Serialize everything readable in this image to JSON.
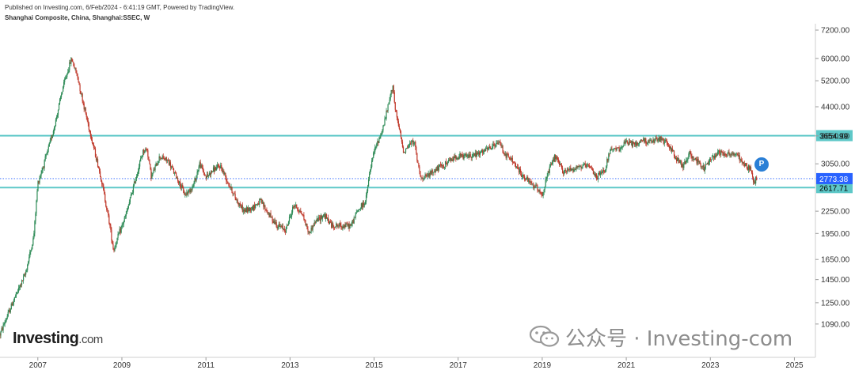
{
  "header": {
    "published": "Published on Investing.com, 6/Feb/2024 - 6:41:19 GMT, Powered by TradingView.",
    "symbol": "Shanghai Composite, China, Shanghai:SSEC, W"
  },
  "branding": {
    "logo_main": "Investing",
    "logo_suffix": ".com",
    "watermark": "公众号 · Investing-com"
  },
  "colors": {
    "up": "#2e8b57",
    "down": "#c0392b",
    "hline": "#5ec8c8",
    "current": "#2962ff",
    "axis_text": "#333333"
  },
  "chart_data": {
    "type": "candlestick",
    "title": "Shanghai Composite, China, Shanghai:SSEC, W",
    "y_scale": "log",
    "ylim": [
      880,
      7500
    ],
    "x_range": [
      2006.1,
      2025.5
    ],
    "y_ticks": [
      7200,
      6000,
      5200,
      4400,
      3650,
      3050,
      2250,
      1950,
      1650,
      1450,
      1250,
      1090
    ],
    "y_tick_labels": [
      "7200.00",
      "6000.00",
      "5200.00",
      "4400.00",
      "3650.00",
      "3050.00",
      "2250.00",
      "1950.00",
      "1650.00",
      "1450.00",
      "1250.00",
      "1090.00"
    ],
    "x_ticks": [
      2007,
      2009,
      2011,
      2013,
      2015,
      2017,
      2019,
      2021,
      2023,
      2025
    ],
    "x_tick_labels": [
      "2007",
      "2009",
      "2011",
      "2013",
      "2015",
      "2017",
      "2019",
      "2021",
      "2023",
      "2025"
    ],
    "horizontal_lines": [
      {
        "value": 3654.99,
        "label": "3654.99"
      },
      {
        "value": 2617.71,
        "label": "2617.71"
      }
    ],
    "current_price": {
      "value": 2773.38,
      "label": "2773.38"
    },
    "series": [
      {
        "path": [
          [
            2006.1,
            1020
          ],
          [
            2006.4,
            1250
          ],
          [
            2006.7,
            1500
          ],
          [
            2006.9,
            1900
          ],
          [
            2007.0,
            2700
          ],
          [
            2007.2,
            3200
          ],
          [
            2007.4,
            3900
          ],
          [
            2007.6,
            5000
          ],
          [
            2007.8,
            6000
          ],
          [
            2007.95,
            5300
          ],
          [
            2008.1,
            4400
          ],
          [
            2008.3,
            3500
          ],
          [
            2008.5,
            2800
          ],
          [
            2008.7,
            2100
          ],
          [
            2008.8,
            1750
          ],
          [
            2008.9,
            1900
          ],
          [
            2009.1,
            2200
          ],
          [
            2009.3,
            2700
          ],
          [
            2009.5,
            3300
          ],
          [
            2009.6,
            3350
          ],
          [
            2009.7,
            2800
          ],
          [
            2009.9,
            3200
          ],
          [
            2010.1,
            3100
          ],
          [
            2010.3,
            2800
          ],
          [
            2010.5,
            2500
          ],
          [
            2010.7,
            2650
          ],
          [
            2010.85,
            3050
          ],
          [
            2011.0,
            2800
          ],
          [
            2011.2,
            2950
          ],
          [
            2011.35,
            3000
          ],
          [
            2011.5,
            2750
          ],
          [
            2011.7,
            2450
          ],
          [
            2011.9,
            2250
          ],
          [
            2012.1,
            2300
          ],
          [
            2012.3,
            2400
          ],
          [
            2012.5,
            2200
          ],
          [
            2012.7,
            2050
          ],
          [
            2012.9,
            2000
          ],
          [
            2013.1,
            2350
          ],
          [
            2013.3,
            2200
          ],
          [
            2013.45,
            1950
          ],
          [
            2013.6,
            2100
          ],
          [
            2013.8,
            2200
          ],
          [
            2014.0,
            2050
          ],
          [
            2014.2,
            2050
          ],
          [
            2014.45,
            2050
          ],
          [
            2014.6,
            2250
          ],
          [
            2014.8,
            2400
          ],
          [
            2014.9,
            2900
          ],
          [
            2015.0,
            3300
          ],
          [
            2015.2,
            3800
          ],
          [
            2015.35,
            4500
          ],
          [
            2015.45,
            5100
          ],
          [
            2015.5,
            4300
          ],
          [
            2015.6,
            3800
          ],
          [
            2015.7,
            3300
          ],
          [
            2015.8,
            3400
          ],
          [
            2015.95,
            3550
          ],
          [
            2016.05,
            3000
          ],
          [
            2016.15,
            2750
          ],
          [
            2016.4,
            2900
          ],
          [
            2016.7,
            3050
          ],
          [
            2016.95,
            3200
          ],
          [
            2017.2,
            3200
          ],
          [
            2017.5,
            3250
          ],
          [
            2017.8,
            3400
          ],
          [
            2018.0,
            3500
          ],
          [
            2018.1,
            3250
          ],
          [
            2018.3,
            3100
          ],
          [
            2018.5,
            2850
          ],
          [
            2018.7,
            2700
          ],
          [
            2018.9,
            2600
          ],
          [
            2019.0,
            2500
          ],
          [
            2019.15,
            2900
          ],
          [
            2019.3,
            3200
          ],
          [
            2019.5,
            2900
          ],
          [
            2019.7,
            2950
          ],
          [
            2019.9,
            3000
          ],
          [
            2020.1,
            3000
          ],
          [
            2020.3,
            2800
          ],
          [
            2020.5,
            2950
          ],
          [
            2020.6,
            3300
          ],
          [
            2020.8,
            3350
          ],
          [
            2021.0,
            3500
          ],
          [
            2021.2,
            3450
          ],
          [
            2021.4,
            3550
          ],
          [
            2021.6,
            3500
          ],
          [
            2021.8,
            3580
          ],
          [
            2022.0,
            3450
          ],
          [
            2022.2,
            3150
          ],
          [
            2022.35,
            3000
          ],
          [
            2022.5,
            3250
          ],
          [
            2022.7,
            3100
          ],
          [
            2022.85,
            2950
          ],
          [
            2023.0,
            3150
          ],
          [
            2023.2,
            3300
          ],
          [
            2023.4,
            3250
          ],
          [
            2023.6,
            3250
          ],
          [
            2023.8,
            3050
          ],
          [
            2023.95,
            2950
          ],
          [
            2024.05,
            2700
          ],
          [
            2024.1,
            2773
          ]
        ]
      }
    ]
  }
}
